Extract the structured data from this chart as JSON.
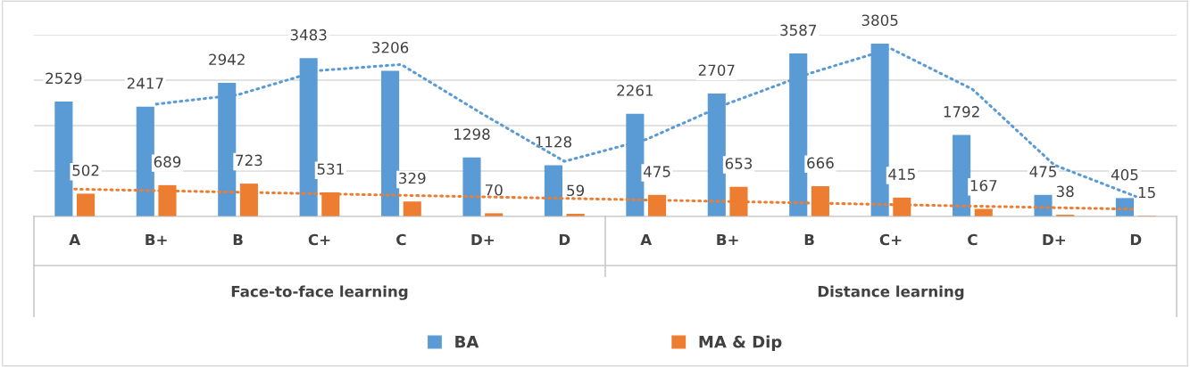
{
  "chart_data": {
    "type": "bar",
    "categories": [
      "A",
      "B+",
      "B",
      "C+",
      "C",
      "D+",
      "D",
      "A",
      "B+",
      "B",
      "C+",
      "C",
      "D+",
      "D"
    ],
    "series": [
      {
        "name": "BA",
        "color": "#5b9bd5",
        "values": [
          2529,
          2417,
          2942,
          3483,
          3206,
          1298,
          1128,
          2261,
          2707,
          3587,
          3805,
          1792,
          475,
          405
        ],
        "value_labels": [
          "2529",
          "2417",
          "2942",
          "3483",
          "3206",
          "1298",
          "1128",
          "2261",
          "2707",
          "3587",
          "3805",
          "1792",
          "475",
          "405"
        ]
      },
      {
        "name": "MA & Dip",
        "color": "#ed7d31",
        "values": [
          502,
          689,
          723,
          531,
          329,
          70,
          59,
          475,
          653,
          666,
          415,
          167,
          38,
          15
        ],
        "value_labels": [
          "502",
          "689",
          "723",
          "531",
          "329",
          "70",
          "59",
          "475",
          "653",
          "666",
          "415",
          "167",
          "38",
          "15"
        ]
      },
      {
        "type": "line",
        "color": "#5b9bd5",
        "line_style": "dotted",
        "values": [
          null,
          2473,
          2680,
          3213,
          3345,
          2252,
          1213,
          1695,
          2484,
          3147,
          3696,
          2799,
          1134,
          440
        ]
      },
      {
        "type": "line",
        "color": "#ed7d31",
        "line_style": "dotted",
        "values": [
          602,
          568,
          534,
          500,
          466,
          432,
          398,
          364,
          330,
          296,
          262,
          228,
          194,
          160
        ]
      }
    ],
    "annotations": [
      "Face-to-face learning",
      "Distance learning"
    ],
    "ylim": [
      0,
      4000
    ],
    "yticks": [
      {
        "value": 0,
        "label": null
      },
      {
        "value": 1000,
        "label": null
      },
      {
        "value": 2000,
        "label": null
      },
      {
        "value": 3000,
        "label": null
      },
      {
        "value": 4000,
        "label": null
      }
    ],
    "tick_labels": "x",
    "grid": "y",
    "legend": "bottom"
  }
}
